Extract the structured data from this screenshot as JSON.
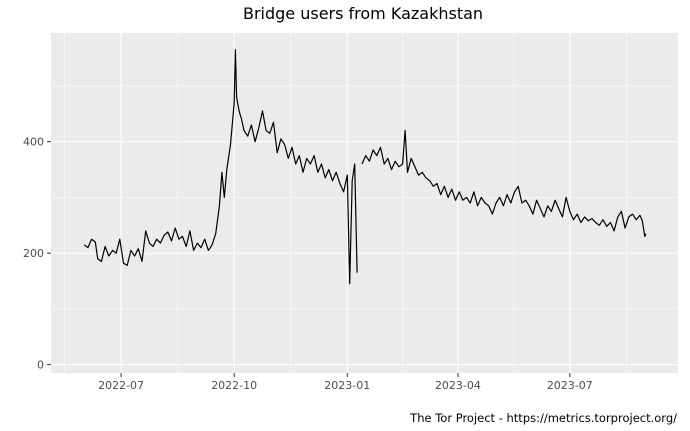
{
  "chart_data": {
    "type": "line",
    "title": "Bridge users from Kazakhstan",
    "caption": "The Tor Project - https://metrics.torproject.org/",
    "xlabel": "",
    "ylabel": "",
    "xlim": [
      "2022-05-05",
      "2023-09-27"
    ],
    "ylim": [
      -15,
      595
    ],
    "x_ticks": [
      {
        "date": "2022-07-01",
        "label": "2022-07"
      },
      {
        "date": "2022-10-01",
        "label": "2022-10"
      },
      {
        "date": "2023-01-01",
        "label": "2023-01"
      },
      {
        "date": "2023-04-01",
        "label": "2023-04"
      },
      {
        "date": "2023-07-01",
        "label": "2023-07"
      }
    ],
    "y_ticks": [
      0,
      200,
      400
    ],
    "grid": true,
    "background": "#ebebeb",
    "line_color": "#000000",
    "series": [
      {
        "points": [
          [
            "2022-06-01",
            215
          ],
          [
            "2022-06-04",
            210
          ],
          [
            "2022-06-07",
            225
          ],
          [
            "2022-06-10",
            220
          ],
          [
            "2022-06-12",
            190
          ],
          [
            "2022-06-15",
            185
          ],
          [
            "2022-06-18",
            212
          ],
          [
            "2022-06-21",
            195
          ],
          [
            "2022-06-24",
            205
          ],
          [
            "2022-06-27",
            200
          ],
          [
            "2022-06-30",
            225
          ],
          [
            "2022-07-03",
            182
          ],
          [
            "2022-07-06",
            178
          ],
          [
            "2022-07-09",
            205
          ],
          [
            "2022-07-12",
            195
          ],
          [
            "2022-07-15",
            208
          ],
          [
            "2022-07-18",
            185
          ],
          [
            "2022-07-21",
            240
          ],
          [
            "2022-07-24",
            218
          ],
          [
            "2022-07-27",
            212
          ],
          [
            "2022-07-30",
            225
          ],
          [
            "2022-08-02",
            218
          ],
          [
            "2022-08-05",
            232
          ],
          [
            "2022-08-08",
            238
          ],
          [
            "2022-08-11",
            222
          ],
          [
            "2022-08-14",
            245
          ],
          [
            "2022-08-17",
            225
          ],
          [
            "2022-08-20",
            230
          ],
          [
            "2022-08-23",
            212
          ],
          [
            "2022-08-26",
            240
          ],
          [
            "2022-08-29",
            205
          ],
          [
            "2022-09-01",
            218
          ],
          [
            "2022-09-04",
            210
          ],
          [
            "2022-09-07",
            225
          ],
          [
            "2022-09-10",
            205
          ],
          [
            "2022-09-13",
            215
          ],
          [
            "2022-09-16",
            235
          ],
          [
            "2022-09-19",
            285
          ],
          [
            "2022-09-21",
            345
          ],
          [
            "2022-09-23",
            300
          ],
          [
            "2022-09-25",
            350
          ],
          [
            "2022-09-28",
            395
          ],
          [
            "2022-10-01",
            470
          ],
          [
            "2022-10-02",
            565
          ],
          [
            "2022-10-03",
            480
          ],
          [
            "2022-10-05",
            455
          ],
          [
            "2022-10-07",
            440
          ],
          [
            "2022-10-09",
            420
          ],
          [
            "2022-10-12",
            410
          ],
          [
            "2022-10-15",
            430
          ],
          [
            "2022-10-18",
            400
          ],
          [
            "2022-10-21",
            425
          ],
          [
            "2022-10-24",
            455
          ],
          [
            "2022-10-27",
            420
          ],
          [
            "2022-10-30",
            415
          ],
          [
            "2022-11-02",
            435
          ],
          [
            "2022-11-05",
            380
          ],
          [
            "2022-11-08",
            405
          ],
          [
            "2022-11-11",
            395
          ],
          [
            "2022-11-14",
            370
          ],
          [
            "2022-11-17",
            390
          ],
          [
            "2022-11-20",
            360
          ],
          [
            "2022-11-23",
            375
          ],
          [
            "2022-11-26",
            345
          ],
          [
            "2022-11-29",
            370
          ],
          [
            "2022-12-02",
            360
          ],
          [
            "2022-12-05",
            375
          ],
          [
            "2022-12-08",
            345
          ],
          [
            "2022-12-11",
            360
          ],
          [
            "2022-12-14",
            335
          ],
          [
            "2022-12-17",
            350
          ],
          [
            "2022-12-20",
            330
          ],
          [
            "2022-12-23",
            345
          ],
          [
            "2022-12-26",
            325
          ],
          [
            "2022-12-29",
            310
          ],
          [
            "2023-01-01",
            340
          ],
          [
            "2023-01-03",
            145
          ],
          [
            "2023-01-05",
            330
          ],
          [
            "2023-01-07",
            360
          ],
          [
            "2023-01-09",
            165
          ],
          [
            "2023-01-13",
            360
          ],
          [
            "2023-01-16",
            375
          ],
          [
            "2023-01-19",
            365
          ],
          [
            "2023-01-22",
            385
          ],
          [
            "2023-01-25",
            375
          ],
          [
            "2023-01-28",
            390
          ],
          [
            "2023-01-31",
            360
          ],
          [
            "2023-02-03",
            370
          ],
          [
            "2023-02-06",
            350
          ],
          [
            "2023-02-09",
            365
          ],
          [
            "2023-02-12",
            355
          ],
          [
            "2023-02-15",
            360
          ],
          [
            "2023-02-17",
            420
          ],
          [
            "2023-02-19",
            345
          ],
          [
            "2023-02-22",
            370
          ],
          [
            "2023-02-25",
            355
          ],
          [
            "2023-02-28",
            340
          ],
          [
            "2023-03-03",
            345
          ],
          [
            "2023-03-06",
            335
          ],
          [
            "2023-03-09",
            330
          ],
          [
            "2023-03-12",
            320
          ],
          [
            "2023-03-15",
            325
          ],
          [
            "2023-03-18",
            305
          ],
          [
            "2023-03-21",
            320
          ],
          [
            "2023-03-24",
            300
          ],
          [
            "2023-03-27",
            315
          ],
          [
            "2023-03-30",
            295
          ],
          [
            "2023-04-02",
            310
          ],
          [
            "2023-04-05",
            295
          ],
          [
            "2023-04-08",
            300
          ],
          [
            "2023-04-11",
            290
          ],
          [
            "2023-04-14",
            310
          ],
          [
            "2023-04-17",
            285
          ],
          [
            "2023-04-20",
            300
          ],
          [
            "2023-04-23",
            290
          ],
          [
            "2023-04-26",
            285
          ],
          [
            "2023-04-29",
            270
          ],
          [
            "2023-05-02",
            290
          ],
          [
            "2023-05-05",
            300
          ],
          [
            "2023-05-08",
            285
          ],
          [
            "2023-05-11",
            305
          ],
          [
            "2023-05-14",
            290
          ],
          [
            "2023-05-17",
            310
          ],
          [
            "2023-05-20",
            320
          ],
          [
            "2023-05-23",
            290
          ],
          [
            "2023-05-26",
            295
          ],
          [
            "2023-05-29",
            285
          ],
          [
            "2023-06-01",
            270
          ],
          [
            "2023-06-04",
            295
          ],
          [
            "2023-06-07",
            280
          ],
          [
            "2023-06-10",
            265
          ],
          [
            "2023-06-13",
            285
          ],
          [
            "2023-06-16",
            275
          ],
          [
            "2023-06-19",
            295
          ],
          [
            "2023-06-22",
            280
          ],
          [
            "2023-06-25",
            265
          ],
          [
            "2023-06-28",
            300
          ],
          [
            "2023-07-01",
            275
          ],
          [
            "2023-07-04",
            260
          ],
          [
            "2023-07-07",
            270
          ],
          [
            "2023-07-10",
            255
          ],
          [
            "2023-07-13",
            265
          ],
          [
            "2023-07-16",
            258
          ],
          [
            "2023-07-19",
            262
          ],
          [
            "2023-07-22",
            255
          ],
          [
            "2023-07-25",
            250
          ],
          [
            "2023-07-28",
            260
          ],
          [
            "2023-07-31",
            248
          ],
          [
            "2023-08-03",
            255
          ],
          [
            "2023-08-06",
            240
          ],
          [
            "2023-08-09",
            265
          ],
          [
            "2023-08-12",
            275
          ],
          [
            "2023-08-15",
            245
          ],
          [
            "2023-08-18",
            265
          ],
          [
            "2023-08-21",
            270
          ],
          [
            "2023-08-24",
            260
          ],
          [
            "2023-08-27",
            268
          ],
          [
            "2023-08-29",
            258
          ],
          [
            "2023-08-31",
            230
          ],
          [
            "2023-09-01",
            235
          ]
        ]
      }
    ]
  }
}
